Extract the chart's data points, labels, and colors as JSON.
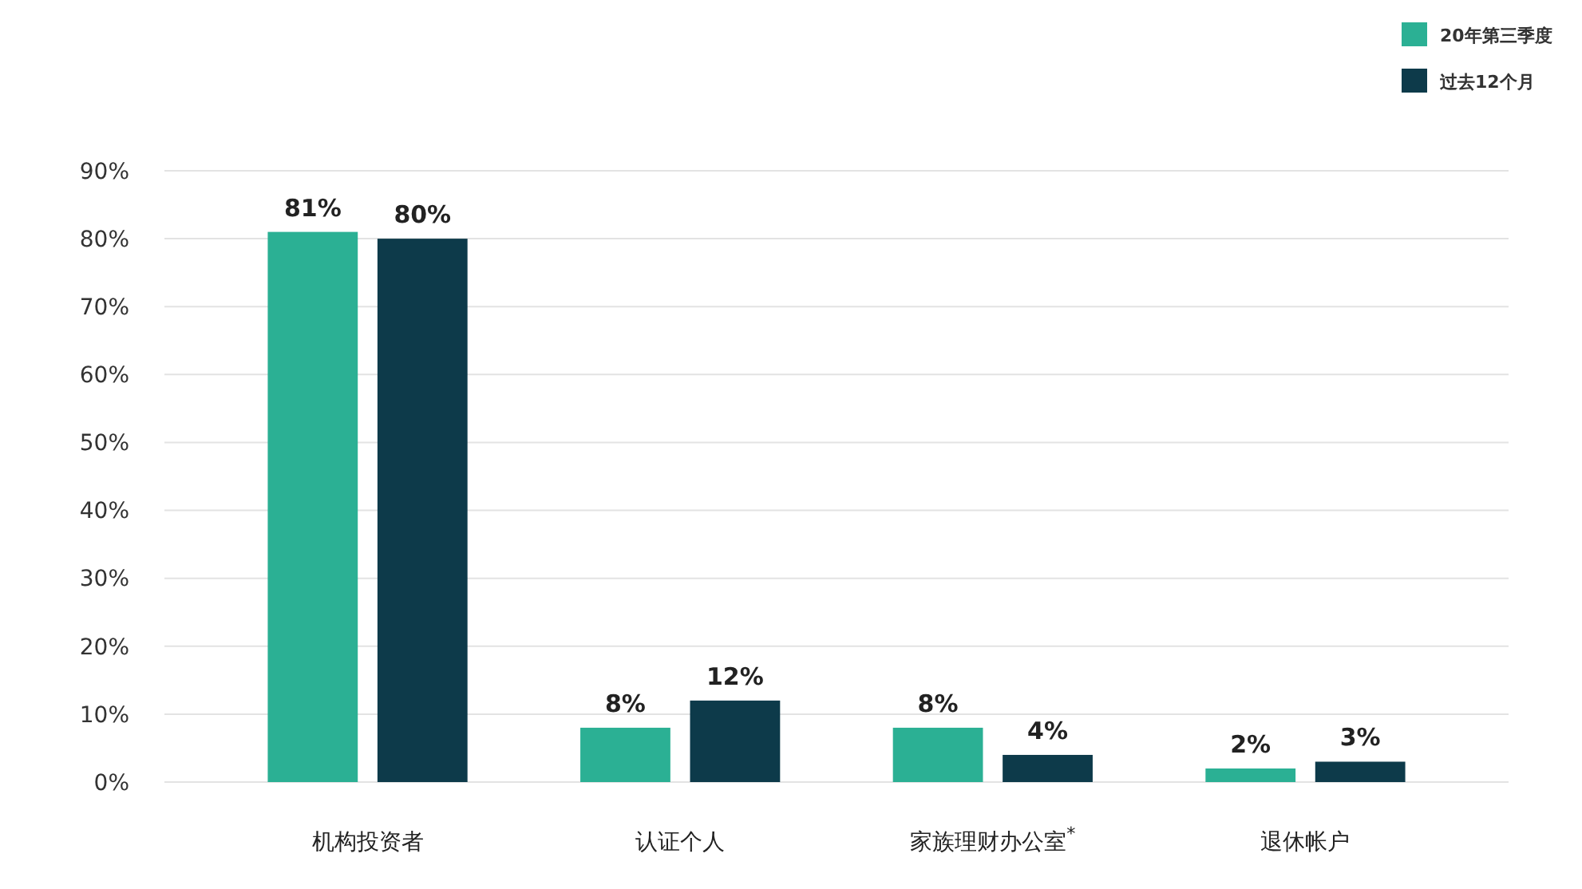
{
  "chart_data": {
    "type": "bar",
    "categories": [
      "机构投资者",
      "认证个人",
      "家族理财办公室$^{*}$",
      "退休帐户"
    ],
    "series": [
      {
        "name": "20年第三季度",
        "color": "#2bb094",
        "values": [
          81,
          8,
          8,
          2
        ],
        "value_labels": [
          "81%",
          "8%",
          "8%",
          "2%"
        ]
      },
      {
        "name": "过去12个月",
        "color": "#0d3a4a",
        "values": [
          80,
          12,
          4,
          3
        ],
        "value_labels": [
          "80%",
          "12%",
          "4%",
          "3%"
        ]
      }
    ],
    "ylim": [
      0,
      90
    ],
    "yticks": [
      {
        "value": 0,
        "label": "0%"
      },
      {
        "value": 10,
        "label": "10%"
      },
      {
        "value": 20,
        "label": "20%"
      },
      {
        "value": 30,
        "label": "30%"
      },
      {
        "value": 40,
        "label": "40%"
      },
      {
        "value": 50,
        "label": "50%"
      },
      {
        "value": 60,
        "label": "60%"
      },
      {
        "value": 70,
        "label": "70%"
      },
      {
        "value": 80,
        "label": "80%"
      },
      {
        "value": 90,
        "label": "90%"
      }
    ],
    "grid": "y",
    "legend": "top right"
  }
}
